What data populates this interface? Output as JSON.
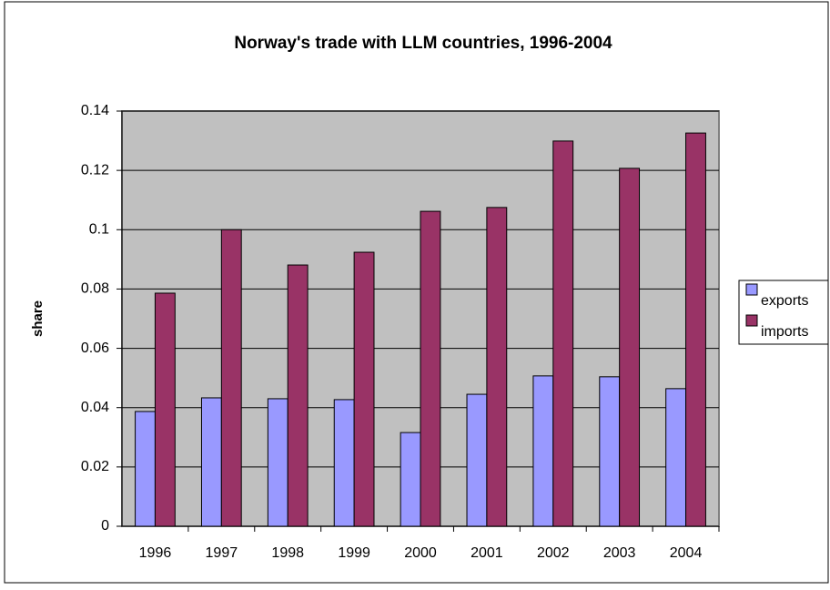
{
  "chart_data": {
    "type": "bar",
    "title": "Norway's trade with LLM countries, 1996-2004",
    "y_label": "share",
    "categories": [
      "1996",
      "1997",
      "1998",
      "1999",
      "2000",
      "2001",
      "2002",
      "2003",
      "2004"
    ],
    "series": [
      {
        "name": "exports",
        "color": "#9999ff",
        "values": [
          0.0387,
          0.0433,
          0.043,
          0.0427,
          0.0316,
          0.0445,
          0.0507,
          0.0504,
          0.0464
        ]
      },
      {
        "name": "imports",
        "color": "#993366",
        "values": [
          0.0786,
          0.1,
          0.0881,
          0.0924,
          0.1062,
          0.1075,
          0.1299,
          0.1207,
          0.1326
        ]
      }
    ],
    "ylim": [
      0,
      0.14
    ],
    "yticks": [
      0,
      0.02,
      0.04,
      0.06,
      0.08,
      0.1,
      0.12,
      0.14
    ],
    "grid": true,
    "legend": "right"
  }
}
